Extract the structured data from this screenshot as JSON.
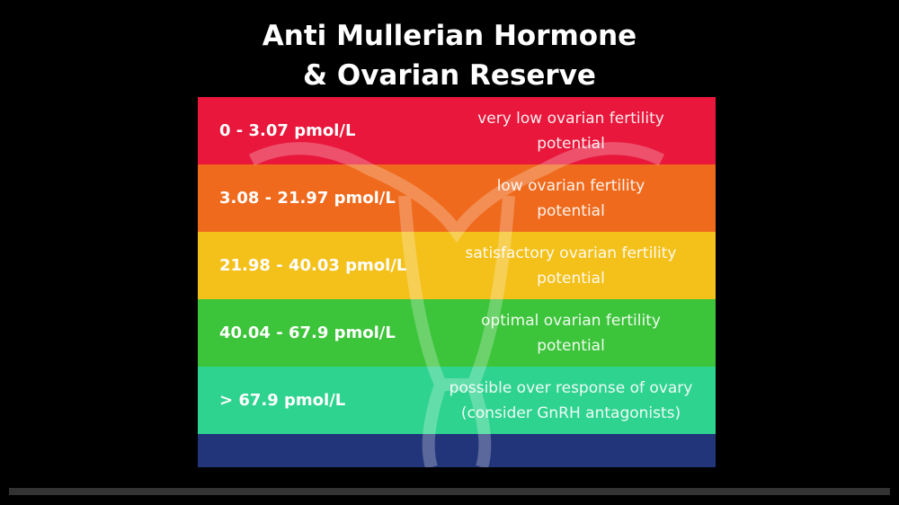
{
  "title": [
    "Anti Mullerian Hormone",
    "& Ovarian Reserve"
  ],
  "rows": [
    {
      "range": "0 - 3.07 pmol/L",
      "description": [
        "very low ovarian fertility",
        "potential"
      ],
      "color": "#e8173b"
    },
    {
      "range": "3.08 - 21.97 pmol/L",
      "description": [
        "low ovarian fertility",
        "potential"
      ],
      "color": "#ef6a1c"
    },
    {
      "range": "21.98 - 40.03 pmol/L",
      "description": [
        "satisfactory ovarian fertility",
        "potential"
      ],
      "color": "#f4c01a"
    },
    {
      "range": "40.04 - 67.9 pmol/L",
      "description": [
        "optimal ovarian fertility",
        "potential"
      ],
      "color": "#3cc43a"
    },
    {
      "range": "> 67.9 pmol/L",
      "description": [
        "possible over response of ovary",
        "(consider GnRH antagonists)"
      ],
      "color": "#2ed38f"
    }
  ]
}
